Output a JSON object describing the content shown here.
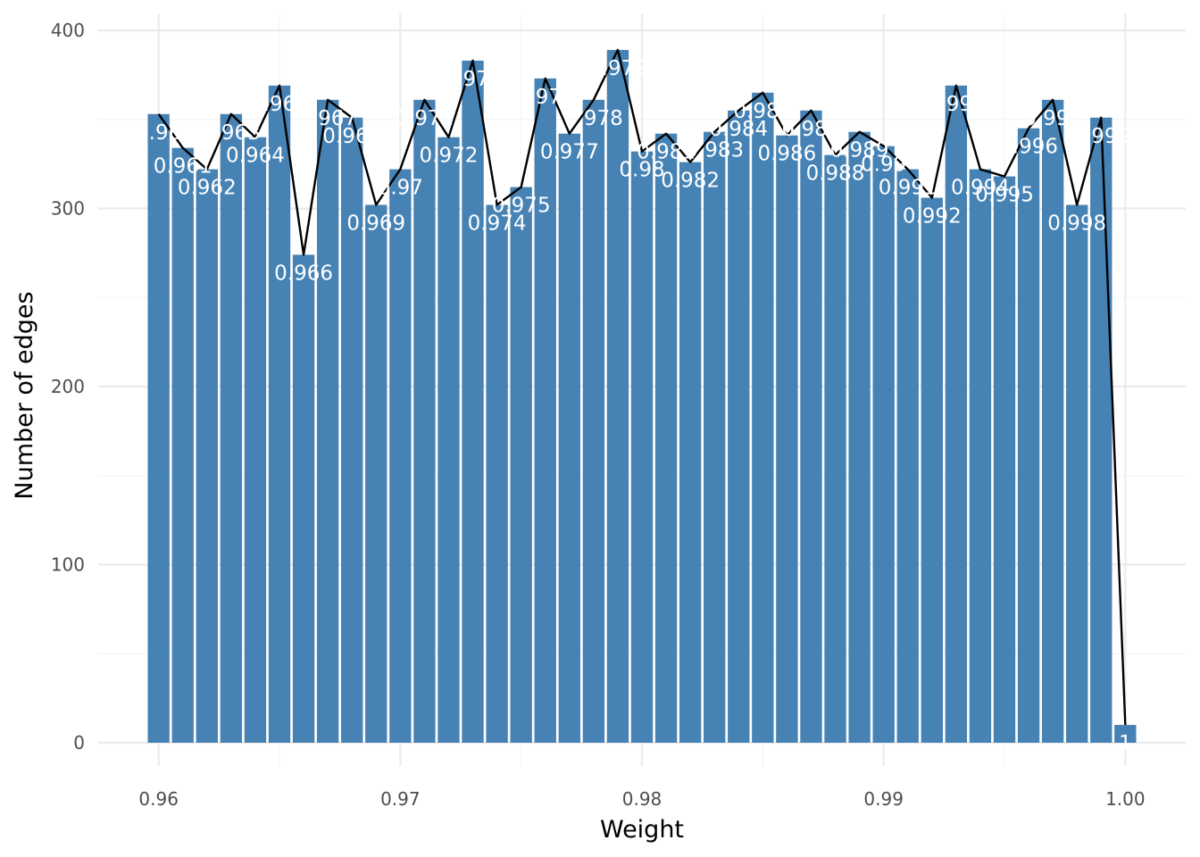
{
  "chart_data": {
    "type": "bar",
    "xlabel": "Weight",
    "ylabel": "Number of edges",
    "xlim": [
      0.9575,
      1.0025
    ],
    "ylim": [
      0,
      400
    ],
    "x_ticks": [
      "0.96",
      "0.97",
      "0.98",
      "0.99",
      "1.00"
    ],
    "x_tick_values": [
      0.96,
      0.97,
      0.98,
      0.99,
      1.0
    ],
    "y_ticks": [
      "0",
      "100",
      "200",
      "300",
      "400"
    ],
    "y_tick_values": [
      0,
      100,
      200,
      300,
      400
    ],
    "grid": true,
    "bar_color": "#4682b4",
    "line_color": "#000000",
    "label_color": "#ffffff",
    "series": [
      {
        "x": [
          0.96,
          0.961,
          0.962,
          0.963,
          0.964,
          0.965,
          0.966,
          0.967,
          0.968,
          0.969,
          0.97,
          0.971,
          0.972,
          0.973,
          0.974,
          0.975,
          0.976,
          0.977,
          0.978,
          0.979,
          0.98,
          0.981,
          0.982,
          0.983,
          0.984,
          0.985,
          0.986,
          0.987,
          0.988,
          0.989,
          0.99,
          0.991,
          0.992,
          0.993,
          0.994,
          0.995,
          0.996,
          0.997,
          0.998,
          0.999,
          1.0
        ],
        "values": [
          353,
          334,
          322,
          353,
          340,
          369,
          274,
          361,
          351,
          302,
          322,
          361,
          340,
          383,
          302,
          312,
          373,
          342,
          361,
          389,
          332,
          342,
          326,
          343,
          355,
          365,
          341,
          355,
          330,
          343,
          335,
          322,
          306,
          369,
          322,
          318,
          345,
          361,
          302,
          351,
          10
        ],
        "labels": [
          "0.96",
          "0.961",
          "0.962",
          "0.963",
          "0.964",
          "0.965",
          "0.966",
          "0.967",
          "0.968",
          "0.969",
          "0.97",
          "0.971",
          "0.972",
          "0.973",
          "0.974",
          "0.975",
          "0.976",
          "0.977",
          "0.978",
          "0.979",
          "0.98",
          "0.981",
          "0.982",
          "0.983",
          "0.984",
          "0.985",
          "0.986",
          "0.987",
          "0.988",
          "0.989",
          "0.99",
          "0.991",
          "0.992",
          "0.993",
          "0.994",
          "0.995",
          "0.996",
          "0.997",
          "0.998",
          "0.999",
          "1"
        ]
      }
    ]
  }
}
